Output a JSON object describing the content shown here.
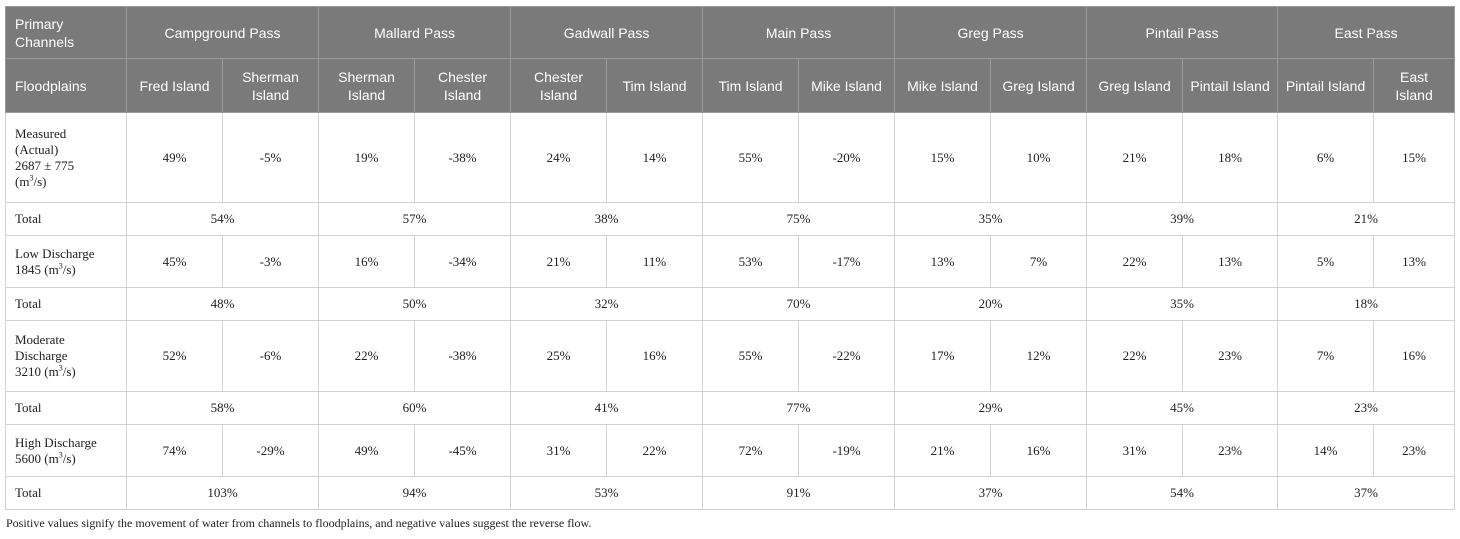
{
  "header": {
    "primary_label": "Primary Channels",
    "floodplains_label": "Floodplains",
    "passes": [
      "Campground Pass",
      "Mallard Pass",
      "Gadwall Pass",
      "Main Pass",
      "Greg Pass",
      "Pintail Pass",
      "East Pass"
    ],
    "islands": [
      "Fred Island",
      "Sherman Island",
      "Sherman Island",
      "Chester Island",
      "Chester Island",
      "Tim Island",
      "Tim Island",
      "Mike Island",
      "Mike Island",
      "Greg Island",
      "Greg Island",
      "Pintail Island",
      "Pintail Island",
      "East Island"
    ]
  },
  "rows": {
    "measured": {
      "l1": "Measured",
      "l2": "(Actual)",
      "l3": "2687 ± 775",
      "l4a": "(m",
      "l4sup": "3",
      "l4b": "/s)",
      "values": [
        "49%",
        "-5%",
        "19%",
        "-38%",
        "24%",
        "14%",
        "55%",
        "-20%",
        "15%",
        "10%",
        "21%",
        "18%",
        "6%",
        "15%"
      ]
    },
    "measured_total": {
      "label": "Total",
      "values": [
        "54%",
        "57%",
        "38%",
        "75%",
        "35%",
        "39%",
        "21%"
      ]
    },
    "low": {
      "l1": "Low Discharge",
      "l2a": "1845 (m",
      "l2sup": "3",
      "l2b": "/s)",
      "values": [
        "45%",
        "-3%",
        "16%",
        "-34%",
        "21%",
        "11%",
        "53%",
        "-17%",
        "13%",
        "7%",
        "22%",
        "13%",
        "5%",
        "13%"
      ]
    },
    "low_total": {
      "label": "Total",
      "values": [
        "48%",
        "50%",
        "32%",
        "70%",
        "20%",
        "35%",
        "18%"
      ]
    },
    "moderate": {
      "l1": "Moderate",
      "l2": "Discharge",
      "l3a": "3210 (m",
      "l3sup": "3",
      "l3b": "/s)",
      "values": [
        "52%",
        "-6%",
        "22%",
        "-38%",
        "25%",
        "16%",
        "55%",
        "-22%",
        "17%",
        "12%",
        "22%",
        "23%",
        "7%",
        "16%"
      ]
    },
    "moderate_total": {
      "label": "Total",
      "values": [
        "58%",
        "60%",
        "41%",
        "77%",
        "29%",
        "45%",
        "23%"
      ]
    },
    "high": {
      "l1": "High Discharge",
      "l2a": "5600 (m",
      "l2sup": "3",
      "l2b": "/s)",
      "values": [
        "74%",
        "-29%",
        "49%",
        "-45%",
        "31%",
        "22%",
        "72%",
        "-19%",
        "21%",
        "16%",
        "31%",
        "23%",
        "14%",
        "23%"
      ]
    },
    "high_total": {
      "label": "Total",
      "values": [
        "103%",
        "94%",
        "53%",
        "91%",
        "37%",
        "54%",
        "37%"
      ]
    }
  },
  "footnote": "Positive values signify the movement of water from channels to floodplains, and negative values suggest the reverse flow."
}
